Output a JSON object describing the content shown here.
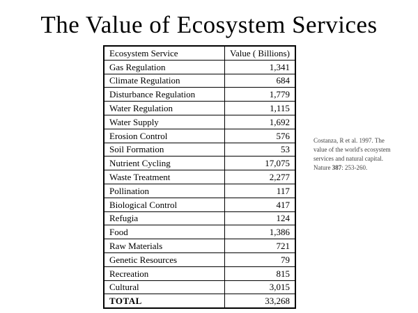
{
  "slide": {
    "title": "The Value of Ecosystem Services"
  },
  "table": {
    "headers": [
      "Ecosystem Service",
      "Value ( Billions)"
    ],
    "rows": [
      {
        "service": "Gas Regulation",
        "value": "1,341"
      },
      {
        "service": "Climate Regulation",
        "value": "684"
      },
      {
        "service": "Disturbance Regulation",
        "value": "1,779"
      },
      {
        "service": "Water Regulation",
        "value": "1,115"
      },
      {
        "service": "Water Supply",
        "value": "1,692"
      },
      {
        "service": "Erosion Control",
        "value": "576"
      },
      {
        "service": "Soil Formation",
        "value": "53"
      },
      {
        "service": "Nutrient Cycling",
        "value": "17,075"
      },
      {
        "service": "Waste Treatment",
        "value": "2,277"
      },
      {
        "service": "Pollination",
        "value": "117"
      },
      {
        "service": "Biological Control",
        "value": "417"
      },
      {
        "service": "Refugia",
        "value": "124"
      },
      {
        "service": "Food",
        "value": "1,386"
      },
      {
        "service": "Raw Materials",
        "value": "721"
      },
      {
        "service": "Genetic Resources",
        "value": "79"
      },
      {
        "service": "Recreation",
        "value": "815"
      },
      {
        "service": "Cultural",
        "value": "3,015"
      }
    ],
    "total": {
      "label": "TOTAL",
      "value": "33,268"
    }
  },
  "citation": {
    "lines": [
      "Costanza, R et al. 1997. The",
      "value of the world's ecosystem",
      "services and natural capital."
    ],
    "line4": {
      "pre": "Nature ",
      "volume": "387",
      "post": ": 253-260."
    }
  }
}
